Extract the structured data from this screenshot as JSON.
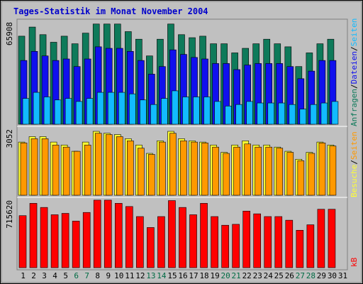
{
  "chart_data": {
    "type": "bar",
    "title": "Tages-Statistik im Monat November 2004",
    "categories": [
      "1",
      "2",
      "3",
      "4",
      "5",
      "6",
      "7",
      "8",
      "9",
      "10",
      "11",
      "12",
      "13",
      "14",
      "15",
      "16",
      "17",
      "18",
      "19",
      "20",
      "21",
      "22",
      "23",
      "24",
      "25",
      "26",
      "27",
      "28",
      "29",
      "30",
      "31"
    ],
    "weekend_days": [
      "6",
      "7",
      "13",
      "14",
      "20",
      "21",
      "27",
      "28"
    ],
    "panels": [
      {
        "name": "top",
        "max_label": "65908",
        "ylim": [
          0,
          65908
        ],
        "series": [
          {
            "name": "Anfragen",
            "color": "#0e7a5a",
            "values": [
              58000,
              64000,
              59000,
              54000,
              58000,
              53000,
              60000,
              66000,
              66000,
              66000,
              61000,
              56000,
              45000,
              56000,
              66000,
              59000,
              57000,
              58000,
              53000,
              53000,
              47000,
              50000,
              53000,
              56000,
              53000,
              51000,
              38000,
              47000,
              53000,
              56000,
              0
            ]
          },
          {
            "name": "Dateien",
            "color": "#1010ee",
            "values": [
              42000,
              48000,
              45000,
              42000,
              43000,
              38000,
              43000,
              51000,
              50000,
              50000,
              48000,
              42000,
              33000,
              38000,
              49000,
              46000,
              44000,
              43000,
              40000,
              40000,
              36000,
              39000,
              40000,
              40000,
              40000,
              38000,
              30000,
              35000,
              42000,
              42000,
              0
            ]
          },
          {
            "name": "Seiten",
            "color": "#12bbff",
            "values": [
              17000,
              21000,
              18000,
              16000,
              17000,
              15000,
              17000,
              21000,
              21000,
              21000,
              20000,
              16000,
              13000,
              17000,
              22000,
              18000,
              18000,
              18000,
              15000,
              12000,
              13000,
              15000,
              14000,
              14000,
              14000,
              13000,
              10000,
              13000,
              14000,
              15000,
              0
            ]
          }
        ]
      },
      {
        "name": "middle",
        "max_label": "3052",
        "ylim": [
          0,
          3052
        ],
        "series": [
          {
            "name": "Besuche",
            "color": "#ffff33",
            "values": [
              2540,
              2800,
              2800,
              2540,
              2400,
              2100,
              2540,
              3052,
              2960,
              2900,
              2700,
              2400,
              2000,
              2600,
              3052,
              2700,
              2600,
              2540,
              2400,
              2050,
              2400,
              2600,
              2400,
              2400,
              2300,
              2100,
              1720,
              2050,
              2540,
              2400,
              0
            ]
          },
          {
            "name": "Seiten",
            "color": "#ff9900",
            "values": [
              2500,
              2700,
              2700,
              2400,
              2300,
              2100,
              2400,
              2960,
              2900,
              2800,
              2600,
              2250,
              1950,
              2540,
              2960,
              2600,
              2540,
              2500,
              2300,
              2000,
              2300,
              2450,
              2300,
              2300,
              2250,
              2050,
              1650,
              2000,
              2500,
              2350,
              0
            ]
          }
        ]
      },
      {
        "name": "bottom",
        "max_label": "715620",
        "ylim": [
          0,
          715620
        ],
        "series": [
          {
            "name": "kB",
            "color": "#ff0000",
            "values": [
              570000,
              705000,
              660000,
              580000,
              595000,
              510000,
              605000,
              740000,
              740000,
              705000,
              670000,
              560000,
              440000,
              560000,
              735000,
              660000,
              580000,
              705000,
              560000,
              465000,
              475000,
              620000,
              590000,
              560000,
              560000,
              520000,
              410000,
              470000,
              640000,
              640000,
              0
            ]
          }
        ]
      }
    ],
    "legend_top": [
      "Anfragen",
      "Dateien",
      "Seiten"
    ],
    "legend_middle": [
      "Besuche",
      "Seiten"
    ],
    "legend_bottom": [
      "kB"
    ],
    "legend_placement": "right-vertical"
  },
  "colors": {
    "background": "#c0c0c0",
    "frame": "#000000",
    "title": "#0000cc",
    "weekday_label": "#000000",
    "weekend_label": "#006b44",
    "separator": "#ffffff"
  }
}
